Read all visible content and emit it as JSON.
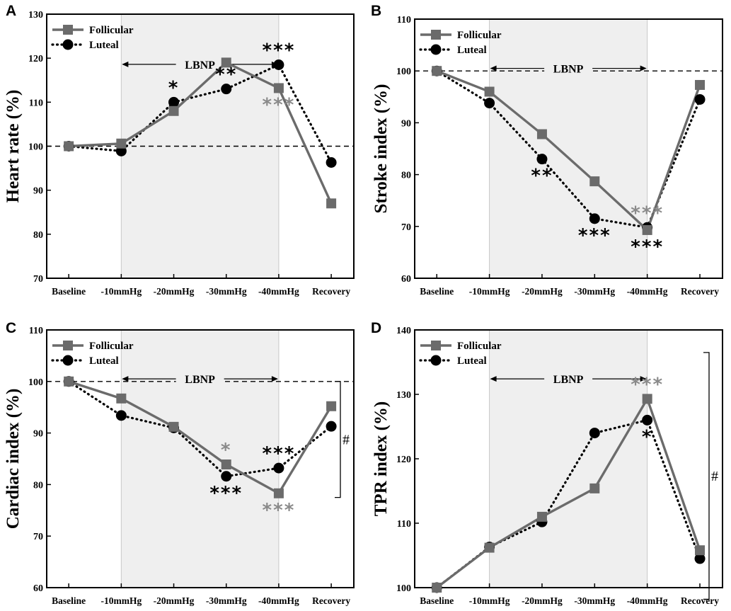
{
  "colors": {
    "follicular": "#6b6b6b",
    "luteal": "#000000",
    "shade": "#efefef",
    "star_gray": "#8a8a8a",
    "star_black": "#000000"
  },
  "chart_data": [
    {
      "type": "line",
      "panel": "A",
      "ylabel": "Heart rate (%)",
      "ylim": [
        70,
        130
      ],
      "yticks": [
        "70",
        "80",
        "90",
        "100",
        "110",
        "120",
        "130"
      ],
      "categories": [
        "Baseline",
        "-10mmHg",
        "-20mmHg",
        "-30mmHg",
        "-40mmHg",
        "Recovery"
      ],
      "reference_line": 100,
      "shaded_region": [
        "-10mmHg",
        "-40mmHg"
      ],
      "region_label": "LBNP",
      "series": [
        {
          "name": "Follicular",
          "marker": "square",
          "line": "solid",
          "values": [
            100,
            100.6,
            108,
            119,
            113.2,
            87
          ]
        },
        {
          "name": "Luteal",
          "marker": "circle",
          "line": "dotted",
          "values": [
            100,
            98.9,
            110,
            113,
            118.5,
            96.3
          ]
        }
      ],
      "annotations": [
        {
          "text": "*",
          "category": "-20mmHg",
          "color": "black",
          "pos": "above",
          "value": 110
        },
        {
          "text": "**",
          "category": "-30mmHg",
          "color": "black",
          "pos": "above",
          "value": 113
        },
        {
          "text": "***",
          "category": "-40mmHg",
          "color": "black",
          "pos": "above",
          "value": 118.5
        },
        {
          "text": "***",
          "category": "-40mmHg",
          "color": "gray",
          "pos": "below",
          "value": 113.2
        }
      ],
      "bracket": null
    },
    {
      "type": "line",
      "panel": "B",
      "ylabel": "Stroke index (%)",
      "ylim": [
        60,
        110
      ],
      "yticks": [
        "60",
        "70",
        "80",
        "90",
        "100",
        "110"
      ],
      "categories": [
        "Baseline",
        "-10mmHg",
        "-20mmHg",
        "-30mmHg",
        "-40mmHg",
        "Recovery"
      ],
      "reference_line": 100,
      "shaded_region": [
        "-10mmHg",
        "-40mmHg"
      ],
      "region_label": "LBNP",
      "series": [
        {
          "name": "Follicular",
          "marker": "square",
          "line": "solid",
          "values": [
            100,
            96,
            87.8,
            78.7,
            69.3,
            97.3
          ]
        },
        {
          "name": "Luteal",
          "marker": "circle",
          "line": "dotted",
          "values": [
            100,
            93.8,
            83,
            71.5,
            69.8,
            94.5
          ]
        }
      ],
      "annotations": [
        {
          "text": "**",
          "category": "-20mmHg",
          "color": "black",
          "pos": "below",
          "value": 83
        },
        {
          "text": "***",
          "category": "-30mmHg",
          "color": "black",
          "pos": "below",
          "value": 71.5
        },
        {
          "text": "***",
          "category": "-40mmHg",
          "color": "gray",
          "pos": "above",
          "value": 69.8
        },
        {
          "text": "***",
          "category": "-40mmHg",
          "color": "black",
          "pos": "below",
          "value": 69.3
        }
      ],
      "bracket": null
    },
    {
      "type": "line",
      "panel": "C",
      "ylabel": "Cardiac index (%)",
      "ylim": [
        60,
        110
      ],
      "yticks": [
        "60",
        "70",
        "80",
        "90",
        "100",
        "110"
      ],
      "categories": [
        "Baseline",
        "-10mmHg",
        "-20mmHg",
        "-30mmHg",
        "-40mmHg",
        "Recovery"
      ],
      "reference_line": 100,
      "shaded_region": [
        "-10mmHg",
        "-40mmHg"
      ],
      "region_label": "LBNP",
      "series": [
        {
          "name": "Follicular",
          "marker": "square",
          "line": "solid",
          "values": [
            100,
            96.7,
            91.2,
            83.9,
            78.3,
            95.2
          ]
        },
        {
          "name": "Luteal",
          "marker": "circle",
          "line": "dotted",
          "values": [
            100,
            93.4,
            91,
            81.6,
            83.2,
            91.3
          ]
        }
      ],
      "annotations": [
        {
          "text": "*",
          "category": "-30mmHg",
          "color": "gray",
          "pos": "above",
          "value": 83.9
        },
        {
          "text": "***",
          "category": "-30mmHg",
          "color": "black",
          "pos": "below",
          "value": 81.6
        },
        {
          "text": "***",
          "category": "-40mmHg",
          "color": "black",
          "pos": "above",
          "value": 83.2
        },
        {
          "text": "***",
          "category": "-40mmHg",
          "color": "gray",
          "pos": "below",
          "value": 78.3
        }
      ],
      "bracket": {
        "text": "#",
        "from": 100,
        "to": 77.5
      }
    },
    {
      "type": "line",
      "panel": "D",
      "ylabel": "TPR index (%)",
      "ylim": [
        100,
        140
      ],
      "yticks": [
        "100",
        "110",
        "120",
        "130",
        "140"
      ],
      "categories": [
        "Baseline",
        "-10mmHg",
        "-20mmHg",
        "-30mmHg",
        "-40mmHg",
        "Recovery"
      ],
      "reference_line": 100,
      "shaded_region": [
        "-10mmHg",
        "-40mmHg"
      ],
      "region_label": "LBNP",
      "series": [
        {
          "name": "Follicular",
          "marker": "square",
          "line": "solid",
          "values": [
            100,
            106.2,
            111,
            115.4,
            129.3,
            105.8
          ]
        },
        {
          "name": "Luteal",
          "marker": "circle",
          "line": "dotted",
          "values": [
            100,
            106.3,
            110.2,
            124,
            126,
            104.5
          ]
        }
      ],
      "annotations": [
        {
          "text": "***",
          "category": "-40mmHg",
          "color": "gray",
          "pos": "above",
          "value": 129.3
        },
        {
          "text": "*",
          "category": "-40mmHg",
          "color": "black",
          "pos": "below",
          "value": 126
        }
      ],
      "bracket": {
        "text": "#",
        "from": 136.5,
        "to": 98.2
      }
    }
  ]
}
